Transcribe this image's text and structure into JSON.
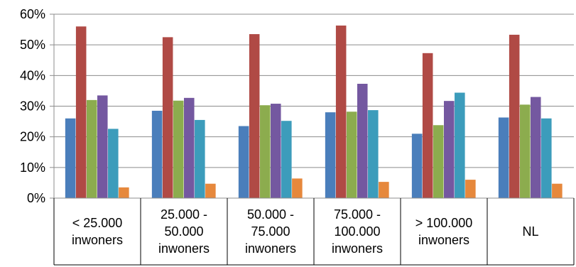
{
  "chart_data": {
    "type": "bar",
    "categories": [
      [
        "< 25.000",
        "inwoners"
      ],
      [
        "25.000 -",
        "50.000",
        "inwoners"
      ],
      [
        "50.000 -",
        "75.000",
        "inwoners"
      ],
      [
        "75.000 -",
        "100.000",
        "inwoners"
      ],
      [
        "> 100.000",
        "inwoners"
      ],
      [
        "NL"
      ]
    ],
    "yticks": [
      "0%",
      "10%",
      "20%",
      "30%",
      "40%",
      "50%",
      "60%"
    ],
    "ylim": [
      0,
      60
    ],
    "grid": true,
    "legend": "none",
    "series": [
      {
        "color": "#4a7ebb",
        "values": [
          26,
          28.5,
          23.5,
          28,
          21,
          26.3
        ]
      },
      {
        "color": "#b04a45",
        "values": [
          56,
          52.5,
          53.5,
          56.3,
          47.3,
          53.3
        ]
      },
      {
        "color": "#8cac4e",
        "values": [
          32,
          31.8,
          30.3,
          28.2,
          23.8,
          30.5
        ]
      },
      {
        "color": "#7458a0",
        "values": [
          33.5,
          32.7,
          30.8,
          37.3,
          31.7,
          33
        ]
      },
      {
        "color": "#3c9cbb",
        "values": [
          22.6,
          25.5,
          25.2,
          28.7,
          34.4,
          26
        ]
      },
      {
        "color": "#e6883c",
        "values": [
          3.5,
          4.7,
          6.4,
          5.3,
          6,
          4.7
        ]
      }
    ]
  }
}
